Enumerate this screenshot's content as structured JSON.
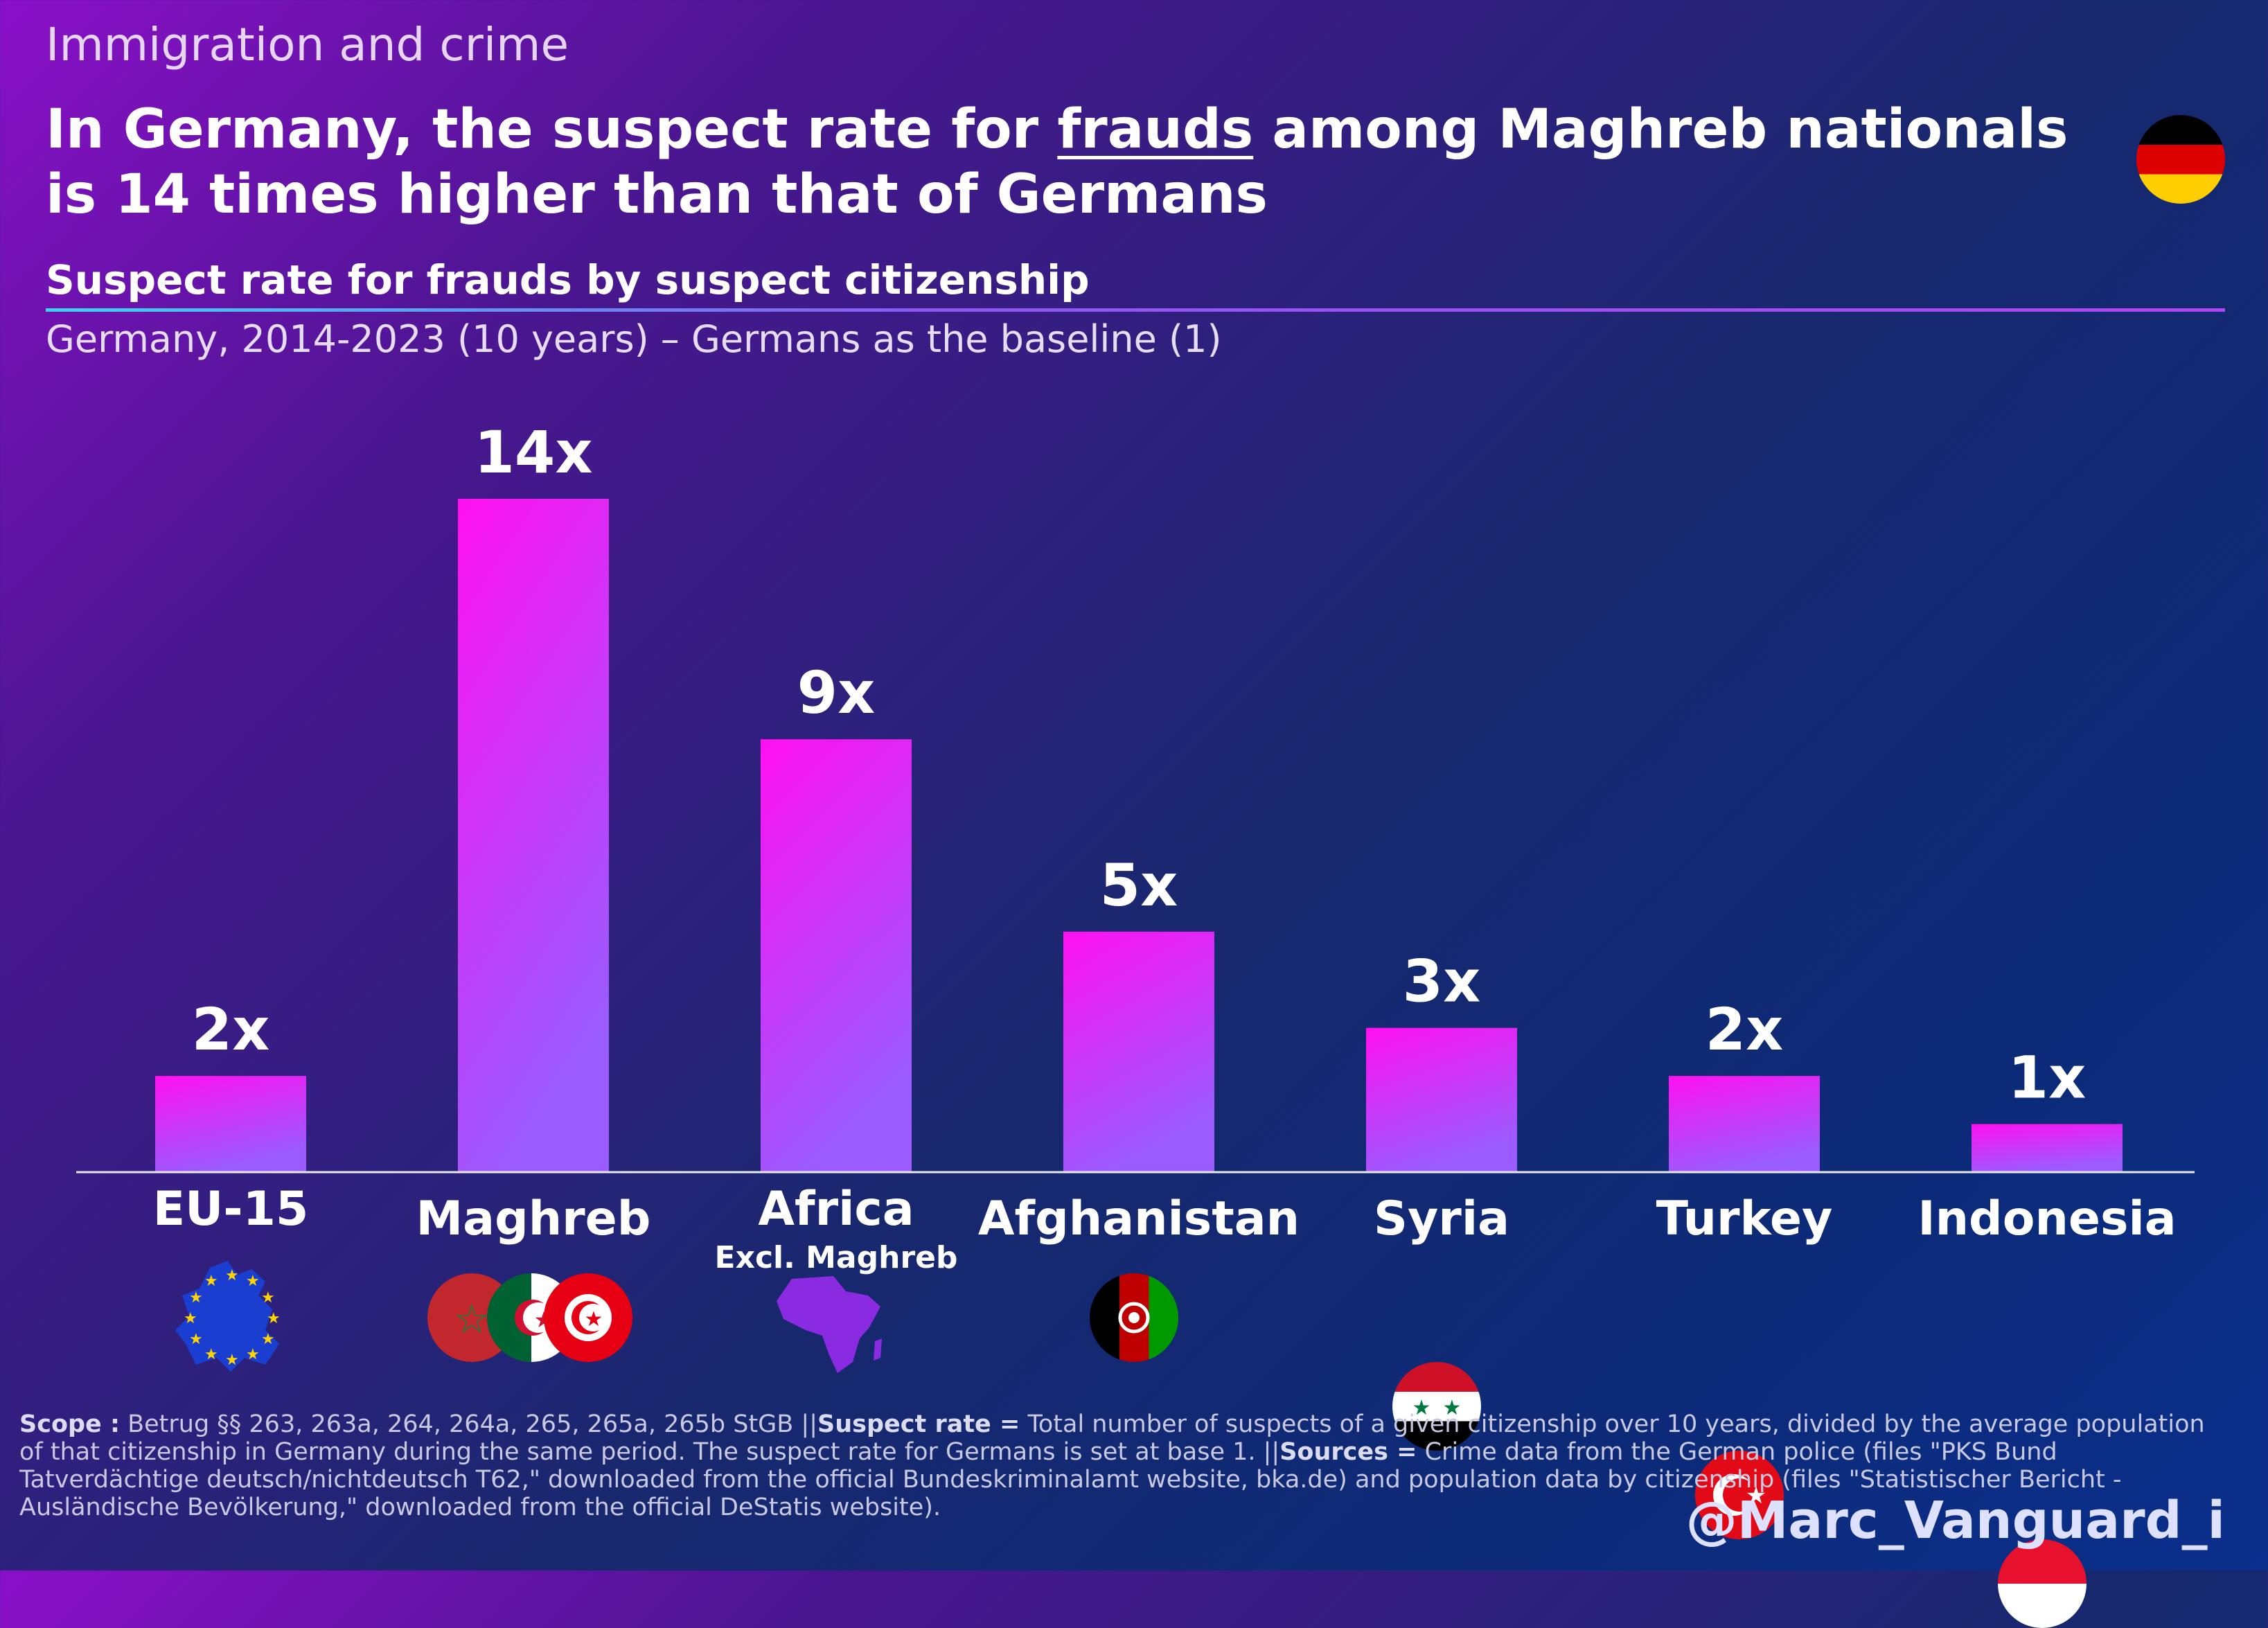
{
  "header": {
    "kicker": "Immigration and crime",
    "headline_before": "In Germany, the suspect rate for ",
    "headline_emph": "frauds",
    "headline_after": " among Maghreb nationals is 14 times higher than that of Germans",
    "subtitle": "Suspect rate for frauds by suspect citizenship",
    "description": "Germany, 2014-2023 (10 years) – Germans as the baseline (1)"
  },
  "flag_icon": "germany-flag-icon",
  "chart_data": {
    "type": "bar",
    "title": "Suspect rate for frauds by suspect citizenship",
    "categories": [
      "EU-15",
      "Maghreb",
      "Africa",
      "Afghanistan",
      "Syria",
      "Turkey",
      "Indonesia"
    ],
    "category_sublabels": [
      "",
      "",
      "Excl. Maghreb",
      "",
      "",
      "",
      ""
    ],
    "values": [
      2,
      14,
      9,
      5,
      3,
      2,
      1
    ],
    "value_labels": [
      "2x",
      "14x",
      "9x",
      "5x",
      "3x",
      "2x",
      "1x"
    ],
    "ylim": [
      0,
      14
    ],
    "grid": false,
    "legend": "none",
    "colors": {
      "bar_top": "#ff10f0",
      "bar_bottom": "#9a5cff",
      "baseline": "#e8e8f0"
    }
  },
  "category_icons": [
    "eu-map-icon",
    "maghreb-flags-icon",
    "africa-map-icon",
    "afghanistan-flag-icon",
    "syria-flag-icon",
    "turkey-flag-icon",
    "indonesia-flag-icon"
  ],
  "footnote": {
    "scope_label": "Scope :",
    "scope_text": " Betrug §§ 263, 263a, 264, 264a, 265, 265a, 265b StGB ||",
    "rate_label": "Suspect rate =",
    "rate_text": " Total number of suspects of a given citizenship over 10 years, divided by the average population of that citizenship in Germany during the same period. The suspect rate for Germans is set at base 1. ||",
    "sources_label": "Sources =",
    "sources_text": " Crime data from the German police (files \"PKS Bund Tatverdächtige deutsch/nichtdeutsch T62,\" downloaded from the official Bundeskriminalamt website, bka.de) and population data by citizenship (files \"Statistischer Bericht - Ausländische Bevölkerung,\" downloaded from the official DeStatis website)."
  },
  "handle": "@Marc_Vanguard_i"
}
